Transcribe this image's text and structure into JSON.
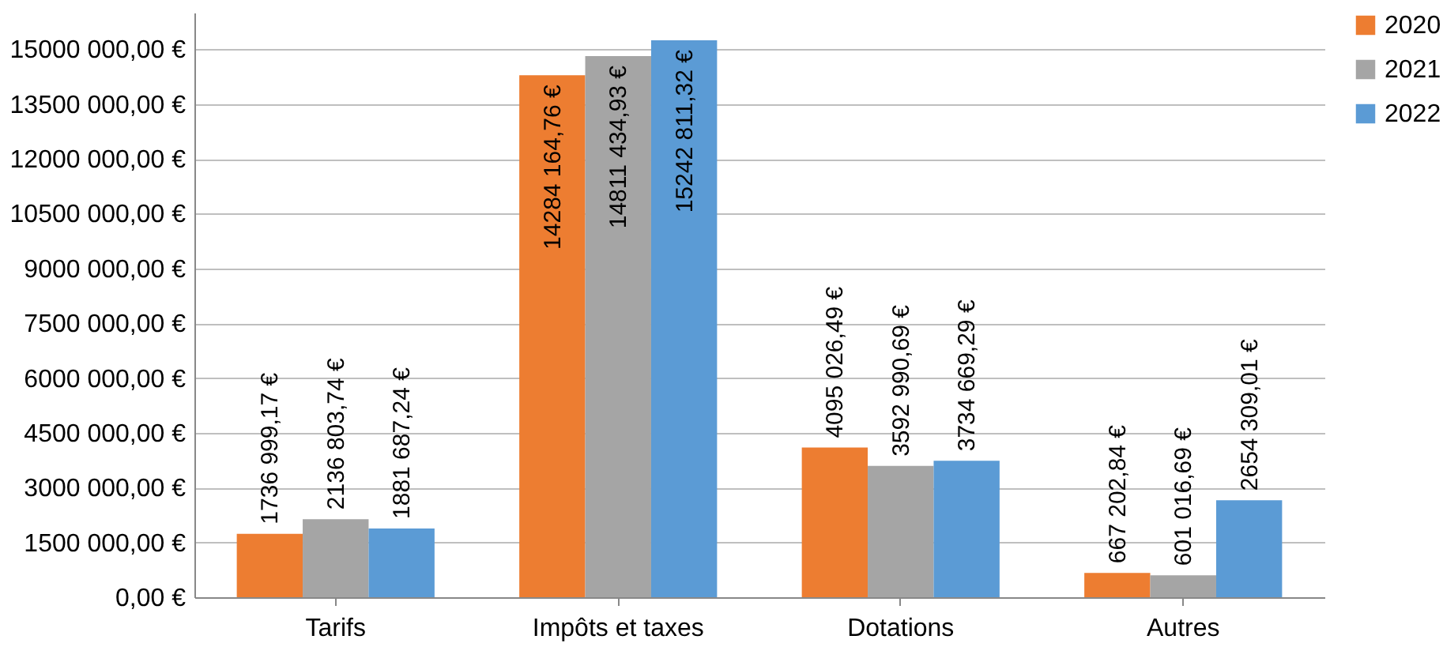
{
  "chart_data": {
    "type": "bar",
    "categories": [
      "Tarifs",
      "Impôts et taxes",
      "Dotations",
      "Autres"
    ],
    "series": [
      {
        "name": "2020",
        "color": "#ed7d31",
        "values": [
          1736999.17,
          14284164.76,
          4095026.49,
          667202.84
        ],
        "value_labels": [
          "1736 999,17 €",
          "14284 164,76 €",
          "4095 026,49 €",
          "667 202,84 €"
        ]
      },
      {
        "name": "2021",
        "color": "#a5a5a5",
        "values": [
          2136803.74,
          14811434.93,
          3592990.69,
          601016.69
        ],
        "value_labels": [
          "2136 803,74 €",
          "14811 434,93 €",
          "3592 990,69 €",
          "601 016,69 €"
        ]
      },
      {
        "name": "2022",
        "color": "#5b9bd5",
        "values": [
          1881687.24,
          15242811.32,
          3734669.29,
          2654309.01
        ],
        "value_labels": [
          "1881 687,24 €",
          "15242 811,32 €",
          "3734 669,29 €",
          "2654 309,01 €"
        ]
      }
    ],
    "ylim": [
      0,
      16000000
    ],
    "yticks": [
      {
        "value": 0,
        "label": "0,00 €"
      },
      {
        "value": 1500000,
        "label": "1500 000,00 €"
      },
      {
        "value": 3000000,
        "label": "3000 000,00 €"
      },
      {
        "value": 4500000,
        "label": "4500 000,00 €"
      },
      {
        "value": 6000000,
        "label": "6000 000,00 €"
      },
      {
        "value": 7500000,
        "label": "7500 000,00 €"
      },
      {
        "value": 9000000,
        "label": "9000 000,00 €"
      },
      {
        "value": 10500000,
        "label": "10500 000,00 €"
      },
      {
        "value": 12000000,
        "label": "12000 000,00 €"
      },
      {
        "value": 13500000,
        "label": "13500 000,00 €"
      },
      {
        "value": 15000000,
        "label": "15000 000,00 €"
      }
    ],
    "grid": "y",
    "legend": "right"
  }
}
